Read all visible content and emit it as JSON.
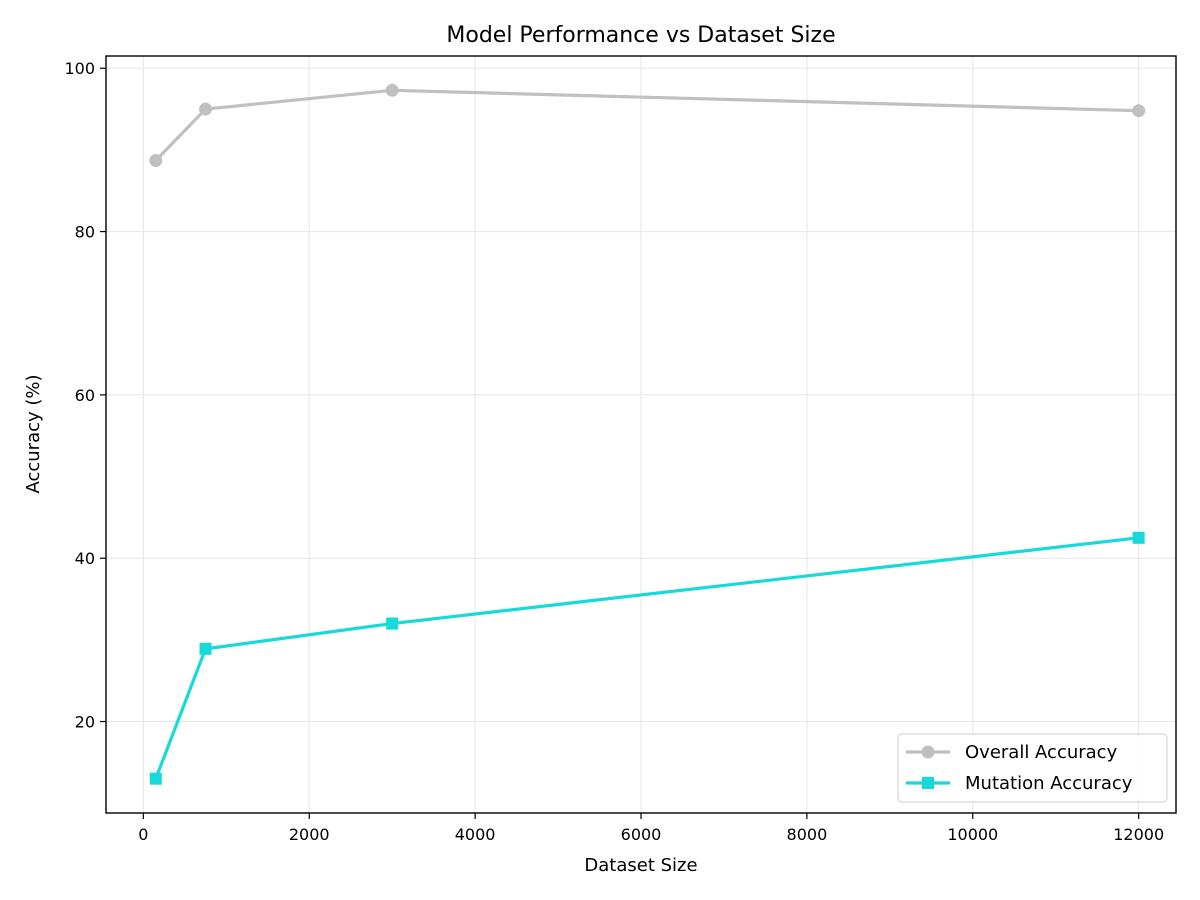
{
  "chart_data": {
    "type": "line",
    "title": "Model Performance vs Dataset Size",
    "xlabel": "Dataset Size",
    "ylabel": "Accuracy (%)",
    "xlim": [
      -450,
      12450
    ],
    "ylim": [
      8.8,
      101.5
    ],
    "xticks": [
      0,
      2000,
      4000,
      6000,
      8000,
      10000,
      12000
    ],
    "yticks": [
      20,
      40,
      60,
      80,
      100
    ],
    "grid": true,
    "legend": "lower-right",
    "series": [
      {
        "name": "Overall Accuracy",
        "color": "#c0c0c0",
        "marker": "circle",
        "x": [
          150,
          750,
          3000,
          12000
        ],
        "y": [
          88.7,
          95.0,
          97.3,
          94.8
        ]
      },
      {
        "name": "Mutation Accuracy",
        "color": "#17d9d9",
        "marker": "square",
        "x": [
          150,
          750,
          3000,
          12000
        ],
        "y": [
          13.0,
          28.9,
          32.0,
          42.5
        ]
      }
    ]
  }
}
